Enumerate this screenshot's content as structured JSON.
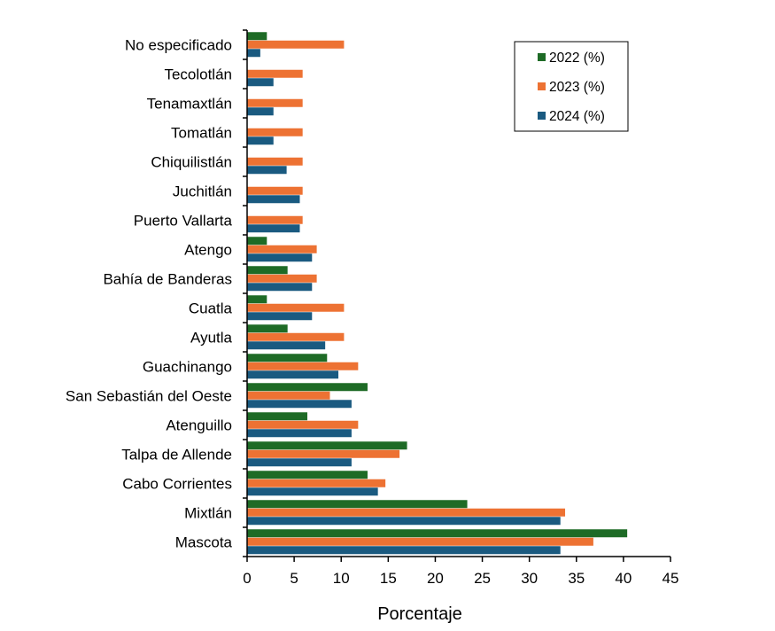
{
  "chart_data": {
    "type": "bar",
    "orientation": "horizontal",
    "title": "",
    "xlabel": "Porcentaje",
    "ylabel": "",
    "xlim": [
      0,
      45
    ],
    "xticks": [
      0,
      5,
      10,
      15,
      20,
      25,
      30,
      35,
      40,
      45
    ],
    "grid": false,
    "legend_position": "top-right",
    "categories": [
      "No especificado",
      "Tecolotlán",
      "Tenamaxtlán",
      "Tomatlán",
      "Chiquilistlán",
      "Juchitlán",
      "Puerto Vallarta",
      "Atengo",
      "Bahía de Banderas",
      "Cuatla",
      "Ayutla",
      "Guachinango",
      "San Sebastián del Oeste",
      "Atenguillo",
      "Talpa de Allende",
      "Cabo Corrientes",
      "Mixtlán",
      "Mascota"
    ],
    "series": [
      {
        "name": "2022 (%)",
        "color": "#1e6b26",
        "values": [
          2.1,
          0,
          0,
          0,
          0,
          0,
          0,
          2.1,
          4.3,
          2.1,
          4.3,
          8.5,
          12.8,
          6.4,
          17.0,
          12.8,
          23.4,
          40.4
        ]
      },
      {
        "name": "2023 (%)",
        "color": "#ed7233",
        "values": [
          10.3,
          5.9,
          5.9,
          5.9,
          5.9,
          5.9,
          5.9,
          7.4,
          7.4,
          10.3,
          10.3,
          11.8,
          8.8,
          11.8,
          16.2,
          14.7,
          33.8,
          36.8
        ]
      },
      {
        "name": "2024 (%)",
        "color": "#1a5a80",
        "values": [
          1.4,
          2.8,
          2.8,
          2.8,
          4.2,
          5.6,
          5.6,
          6.9,
          6.9,
          6.9,
          8.3,
          9.7,
          11.1,
          11.1,
          11.1,
          13.9,
          33.3,
          33.3
        ]
      }
    ]
  }
}
